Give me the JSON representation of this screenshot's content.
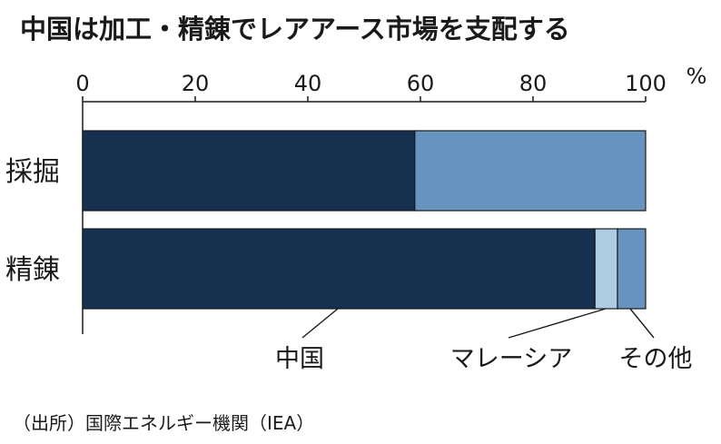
{
  "chart_data": {
    "type": "bar",
    "orientation": "horizontal",
    "stacked": true,
    "title": "中国は加工・精錬でレアアース市場を支配する",
    "unit": "%",
    "xlim": [
      0,
      100
    ],
    "xticks": [
      0,
      20,
      40,
      60,
      80,
      100
    ],
    "categories": [
      "採掘",
      "精錬"
    ],
    "series": [
      {
        "name": "中国",
        "values": [
          59,
          91
        ],
        "color": "#163050"
      },
      {
        "name": "マレーシア",
        "values": [
          0,
          4
        ],
        "color": "#aecde2"
      },
      {
        "name": "その他",
        "values": [
          41,
          5
        ],
        "color": "#6694bf"
      }
    ],
    "legend": [
      "中国",
      "マレーシア",
      "その他"
    ],
    "source": "（出所）国際エネルギー機関（IEA）",
    "grid": false
  }
}
